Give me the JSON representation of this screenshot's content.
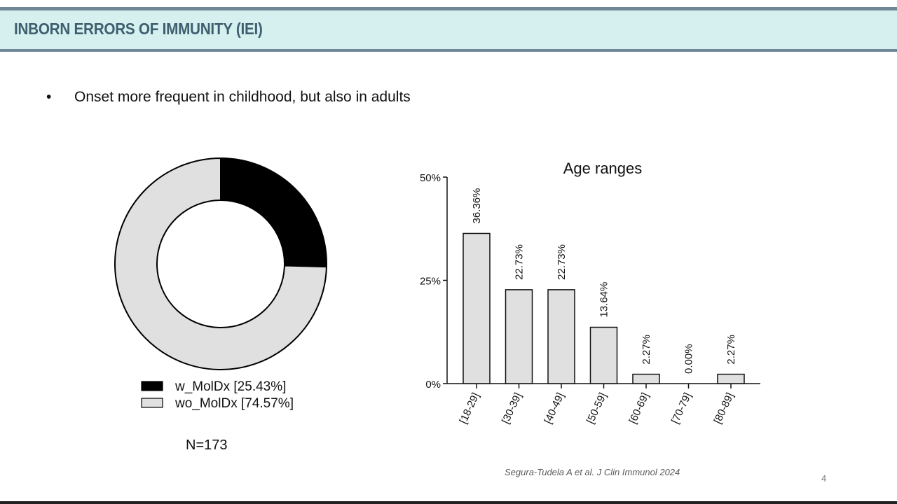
{
  "header": {
    "title": "INBORN ERRORS OF IMMUNITY (IEI)"
  },
  "content": {
    "bullet_symbol": "•",
    "bullet_text": "Onset more frequent in childhood, but also in adults"
  },
  "donut_note": "N=173",
  "citation": "Segura-Tudela A et al. J Clin Immunol 2024",
  "page_number": "4",
  "chart_data": [
    {
      "type": "pie",
      "donut": true,
      "title": "",
      "slices": [
        {
          "label": "w_MolDx [25.43%]",
          "value": 25.43,
          "color": "#000000"
        },
        {
          "label": "wo_MolDx [74.57%]",
          "value": 74.57,
          "color": "#e0e0e0"
        }
      ],
      "legend_position": "bottom"
    },
    {
      "type": "bar",
      "title": "Age ranges",
      "categories": [
        "[18-29]",
        "[30-39]",
        "[40-49]",
        "[50-59]",
        "[60-69]",
        "[70-79]",
        "[80-89]"
      ],
      "values": [
        36.36,
        22.73,
        22.73,
        13.64,
        2.27,
        0.0,
        2.27
      ],
      "data_labels": [
        "36.36%",
        "22.73%",
        "22.73%",
        "13.64%",
        "2.27%",
        "0.00%",
        "2.27%"
      ],
      "ylim": [
        0,
        50
      ],
      "yticks": [
        "0%",
        "25%",
        "50%"
      ],
      "xlabel": "",
      "ylabel": "",
      "bar_color": "#e0e0e0",
      "grid": false
    }
  ]
}
